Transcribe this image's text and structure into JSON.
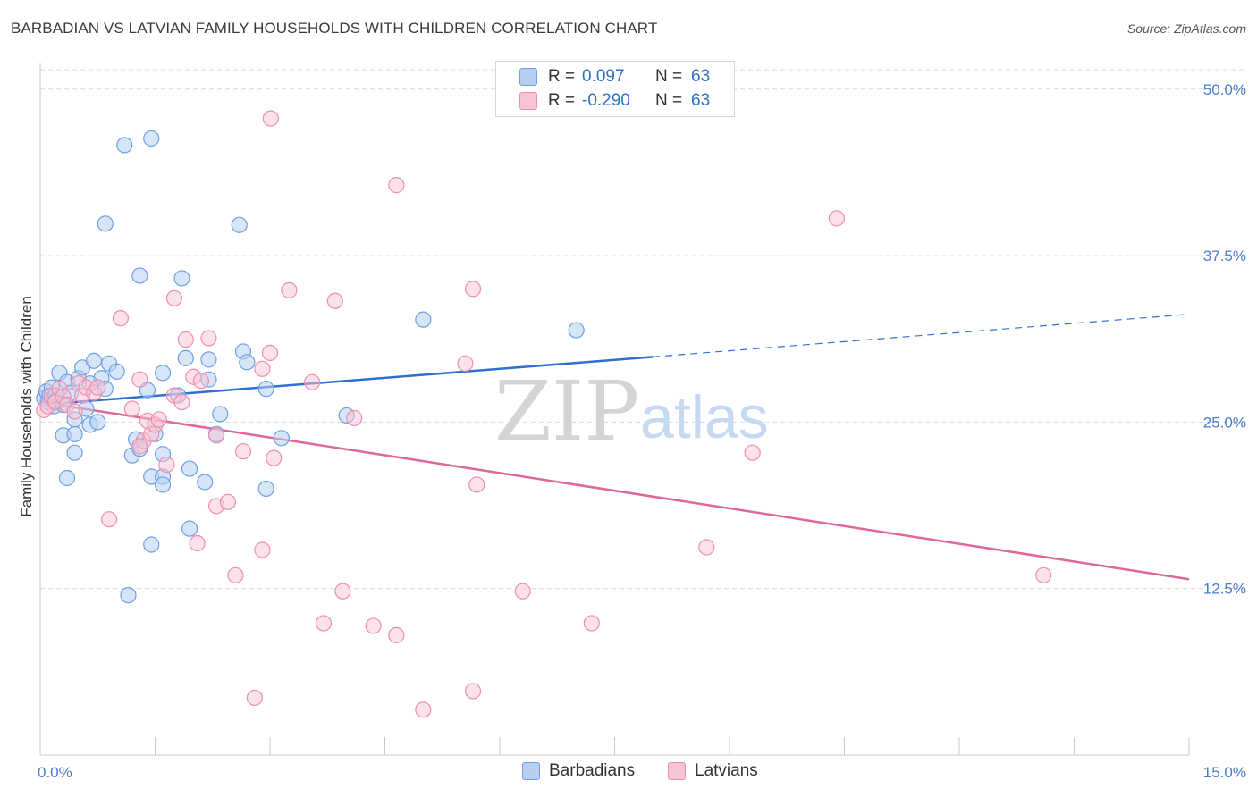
{
  "title": "BARBADIAN VS LATVIAN FAMILY HOUSEHOLDS WITH CHILDREN CORRELATION CHART",
  "source": "Source: ZipAtlas.com",
  "watermark": {
    "zip": "ZIP",
    "atlas": "atlas"
  },
  "legend": {
    "rows": [
      {
        "r_label": "R =",
        "r_value": "0.097",
        "n_label": "N =",
        "n_value": "63"
      },
      {
        "r_label": "R =",
        "r_value": "-0.290",
        "n_label": "N =",
        "n_value": "63"
      }
    ]
  },
  "bottom_legend": [
    "Barbadians",
    "Latvians"
  ],
  "colors": {
    "barbadians_fill": "#b7cff2",
    "barbadians_stroke": "#6e9fe0",
    "barbadians_line": "#2e6fd0",
    "latvians_fill": "#f7c4d4",
    "latvians_stroke": "#ec8fae",
    "latvians_line": "#e0679a",
    "tick_label": "#4a7ec9",
    "grid": "#d9d9d9"
  },
  "chart_data": {
    "type": "scatter",
    "title": "BARBADIAN VS LATVIAN FAMILY HOUSEHOLDS WITH CHILDREN CORRELATION CHART",
    "xlabel": "",
    "ylabel": "Family Households with Children",
    "xlim": [
      0,
      15
    ],
    "ylim": [
      0,
      52
    ],
    "x_tick_labels": [
      "0.0%",
      "15.0%"
    ],
    "y_ticks": [
      12.5,
      25.0,
      37.5,
      50.0
    ],
    "y_tick_labels": [
      "12.5%",
      "25.0%",
      "37.5%",
      "50.0%"
    ],
    "grid": "horizontal dashed",
    "legend_position": "top-center",
    "series": [
      {
        "name": "Barbadians",
        "points": [
          [
            0.05,
            26.8
          ],
          [
            0.08,
            27.3
          ],
          [
            0.1,
            26.5
          ],
          [
            0.12,
            27.0
          ],
          [
            0.15,
            27.6
          ],
          [
            0.18,
            26.2
          ],
          [
            0.2,
            27.0
          ],
          [
            0.25,
            28.7
          ],
          [
            0.3,
            26.3
          ],
          [
            0.35,
            28.0
          ],
          [
            0.4,
            27.2
          ],
          [
            0.45,
            25.2
          ],
          [
            0.5,
            28.3
          ],
          [
            0.55,
            29.1
          ],
          [
            0.6,
            26.0
          ],
          [
            0.65,
            24.8
          ],
          [
            0.7,
            29.6
          ],
          [
            0.75,
            25.0
          ],
          [
            0.8,
            28.3
          ],
          [
            0.85,
            27.5
          ],
          [
            0.9,
            29.4
          ],
          [
            1.0,
            28.8
          ],
          [
            0.3,
            24.0
          ],
          [
            0.45,
            24.1
          ],
          [
            0.35,
            20.8
          ],
          [
            0.45,
            22.7
          ],
          [
            0.65,
            27.9
          ],
          [
            0.85,
            39.9
          ],
          [
            1.1,
            45.8
          ],
          [
            1.45,
            46.3
          ],
          [
            1.3,
            36.0
          ],
          [
            1.85,
            35.8
          ],
          [
            2.6,
            39.8
          ],
          [
            1.4,
            27.4
          ],
          [
            1.5,
            24.1
          ],
          [
            1.6,
            28.7
          ],
          [
            1.25,
            23.7
          ],
          [
            1.2,
            22.5
          ],
          [
            1.3,
            23.0
          ],
          [
            1.6,
            22.6
          ],
          [
            1.45,
            20.9
          ],
          [
            1.6,
            20.9
          ],
          [
            1.6,
            20.3
          ],
          [
            1.9,
            29.8
          ],
          [
            2.2,
            28.2
          ],
          [
            2.2,
            29.7
          ],
          [
            2.35,
            25.6
          ],
          [
            2.3,
            24.1
          ],
          [
            1.95,
            21.5
          ],
          [
            2.15,
            20.5
          ],
          [
            1.95,
            17.0
          ],
          [
            1.45,
            15.8
          ],
          [
            1.15,
            12.0
          ],
          [
            2.65,
            30.3
          ],
          [
            2.7,
            29.5
          ],
          [
            2.95,
            27.5
          ],
          [
            2.95,
            20.0
          ],
          [
            3.15,
            23.8
          ],
          [
            4.0,
            25.5
          ],
          [
            5.0,
            32.7
          ],
          [
            7.0,
            31.9
          ],
          [
            1.8,
            27.0
          ],
          [
            0.2,
            26.6
          ]
        ],
        "trend": {
          "x0": 0.0,
          "y0": 26.3,
          "x_solid_end": 8.0,
          "y_solid_end": 29.9,
          "x1": 15.0,
          "y1": 33.1
        }
      },
      {
        "name": "Latvians",
        "points": [
          [
            0.05,
            25.9
          ],
          [
            0.1,
            26.2
          ],
          [
            0.15,
            27.0
          ],
          [
            0.2,
            26.5
          ],
          [
            0.25,
            27.5
          ],
          [
            0.3,
            26.9
          ],
          [
            0.35,
            26.3
          ],
          [
            0.45,
            25.8
          ],
          [
            0.5,
            27.9
          ],
          [
            0.55,
            27.0
          ],
          [
            0.6,
            27.6
          ],
          [
            0.7,
            27.2
          ],
          [
            0.75,
            27.6
          ],
          [
            0.9,
            17.7
          ],
          [
            1.05,
            32.8
          ],
          [
            1.2,
            26.0
          ],
          [
            1.3,
            28.2
          ],
          [
            1.35,
            23.6
          ],
          [
            1.4,
            25.1
          ],
          [
            1.45,
            24.1
          ],
          [
            1.5,
            24.8
          ],
          [
            1.55,
            25.2
          ],
          [
            1.3,
            23.2
          ],
          [
            1.65,
            21.8
          ],
          [
            1.75,
            27.0
          ],
          [
            1.85,
            26.5
          ],
          [
            1.75,
            34.3
          ],
          [
            1.9,
            31.2
          ],
          [
            2.0,
            28.4
          ],
          [
            2.1,
            28.1
          ],
          [
            2.2,
            31.3
          ],
          [
            2.3,
            24.0
          ],
          [
            2.05,
            15.9
          ],
          [
            2.3,
            18.7
          ],
          [
            2.45,
            19.0
          ],
          [
            2.55,
            13.5
          ],
          [
            2.65,
            22.8
          ],
          [
            2.9,
            29.0
          ],
          [
            3.0,
            30.2
          ],
          [
            3.05,
            22.3
          ],
          [
            2.9,
            15.4
          ],
          [
            3.25,
            34.9
          ],
          [
            3.55,
            28.0
          ],
          [
            3.85,
            34.1
          ],
          [
            3.95,
            12.3
          ],
          [
            4.1,
            25.3
          ],
          [
            3.7,
            9.9
          ],
          [
            4.35,
            9.7
          ],
          [
            4.65,
            9.0
          ],
          [
            3.01,
            47.8
          ],
          [
            4.65,
            42.8
          ],
          [
            2.8,
            4.3
          ],
          [
            5.0,
            3.4
          ],
          [
            5.65,
            4.8
          ],
          [
            5.65,
            35.0
          ],
          [
            5.55,
            29.4
          ],
          [
            5.7,
            20.3
          ],
          [
            6.3,
            12.3
          ],
          [
            7.2,
            9.9
          ],
          [
            8.7,
            15.6
          ],
          [
            9.3,
            22.7
          ],
          [
            10.4,
            40.3
          ],
          [
            13.1,
            13.5
          ]
        ],
        "trend": {
          "x0": 0.0,
          "y0": 26.5,
          "x1": 15.0,
          "y1": 13.2
        }
      }
    ]
  }
}
